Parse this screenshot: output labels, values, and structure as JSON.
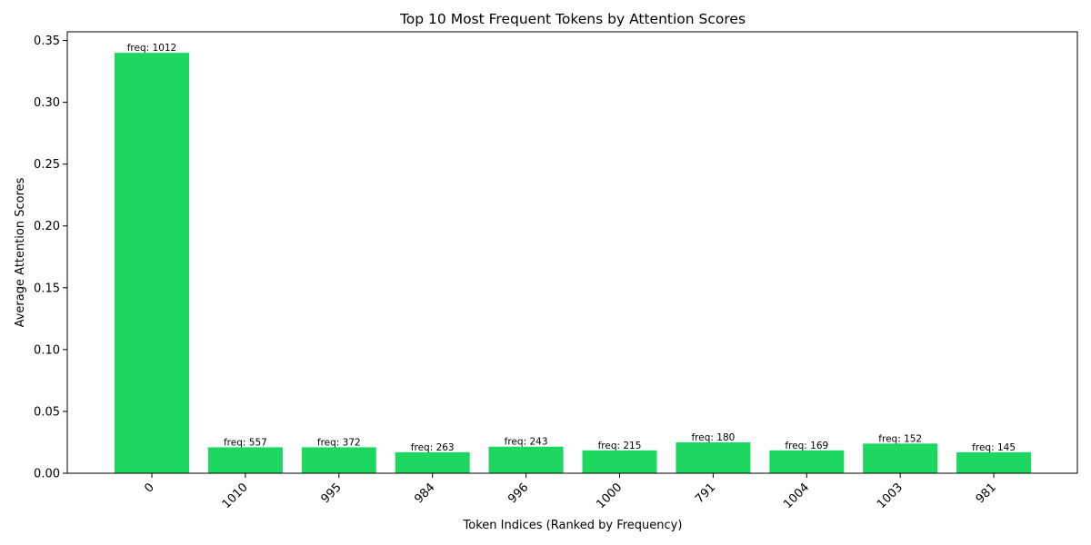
{
  "chart_data": {
    "type": "bar",
    "title": "Top 10 Most Frequent Tokens by Attention Scores",
    "xlabel": "Token Indices (Ranked by Frequency)",
    "ylabel": "Average Attention Scores",
    "categories": [
      "0",
      "1010",
      "995",
      "984",
      "996",
      "1000",
      "791",
      "1004",
      "1003",
      "981"
    ],
    "values": [
      0.34,
      0.021,
      0.021,
      0.017,
      0.0215,
      0.0185,
      0.025,
      0.0185,
      0.024,
      0.017
    ],
    "bar_labels": [
      "freq: 1012",
      "freq: 557",
      "freq: 372",
      "freq: 263",
      "freq: 243",
      "freq: 215",
      "freq: 180",
      "freq: 169",
      "freq: 152",
      "freq: 145"
    ],
    "yticks": [
      0.0,
      0.05,
      0.1,
      0.15,
      0.2,
      0.25,
      0.3,
      0.35
    ],
    "ytick_labels": [
      "0.00",
      "0.05",
      "0.10",
      "0.15",
      "0.20",
      "0.25",
      "0.30",
      "0.35"
    ],
    "ylim": [
      0,
      0.357
    ],
    "bar_color": "#1ed760",
    "grid": false,
    "legend": "none"
  }
}
